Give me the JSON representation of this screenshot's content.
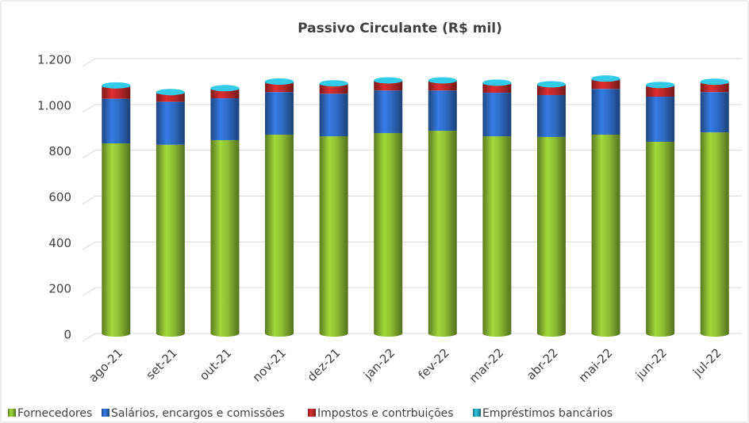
{
  "chart_data": {
    "type": "stacked_bar",
    "title": "Passivo Circulante (R$ mil)",
    "categories": [
      "ago-21",
      "set-21",
      "out-21",
      "nov-21",
      "dez-21",
      "jan-22",
      "fev-22",
      "mar-22",
      "abr-22",
      "mai-22",
      "jun-22",
      "jul-22"
    ],
    "series": [
      {
        "name": "Fornecedores",
        "color": "#8cbd33",
        "values": [
          830,
          824,
          844,
          868,
          861,
          875,
          885,
          861,
          858,
          868,
          837,
          878
        ]
      },
      {
        "name": "Salários, encargos e comissões",
        "color": "#2f6cc6",
        "values": [
          195,
          188,
          183,
          186,
          186,
          186,
          176,
          190,
          183,
          200,
          197,
          176
        ]
      },
      {
        "name": "Impostos e contrbuições",
        "color": "#c0282a",
        "values": [
          50,
          34,
          37,
          38,
          38,
          37,
          37,
          37,
          40,
          37,
          44,
          38
        ]
      },
      {
        "name": "Empréstimos bancários",
        "color": "#2aa9c2",
        "values": [
          8,
          8,
          7,
          8,
          7,
          7,
          7,
          7,
          7,
          8,
          7,
          7
        ]
      }
    ],
    "ylim": [
      0,
      1200
    ],
    "yticks": [
      0,
      200,
      400,
      600,
      800,
      {
        "value": 1000,
        "label": "1.000"
      },
      {
        "value": 1200,
        "label": "1.200"
      }
    ],
    "grid": true,
    "legend": "bottom"
  }
}
